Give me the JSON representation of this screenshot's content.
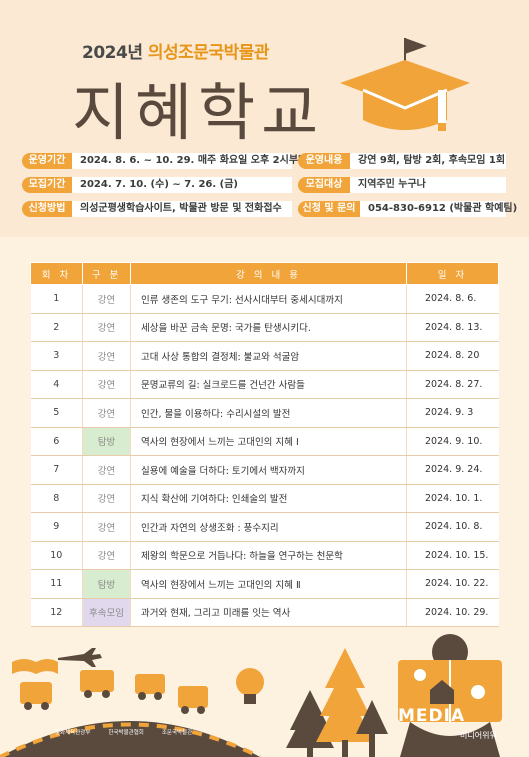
{
  "header": {
    "year": "2024년",
    "museum": "의성조문국박물관",
    "title": "지혜학교"
  },
  "info": {
    "period_label": "운영기간",
    "period_value": "2024. 8. 6. ~ 10. 29. 매주 화요일 오후 2시부터",
    "recruit_label": "모집기간",
    "recruit_value": "2024. 7. 10. (수) ~ 7. 26. (금)",
    "apply_label": "신청방법",
    "apply_value": "의성군평생학습사이트, 박물관 방문 및 전화접수",
    "content_label": "운영내용",
    "content_value": "강연 9회, 탐방 2회, 후속모임 1회",
    "target_label": "모집대상",
    "target_value": "지역주민 누구나",
    "contact_label": "신청 및 문의",
    "contact_value": "054-830-6912 (박물관 학예팀)"
  },
  "table": {
    "headers": [
      "회 차",
      "구 분",
      "강 의 내 용",
      "일 자"
    ],
    "rows": [
      {
        "no": "1",
        "kind": "강연",
        "title": "인류 생존의 도구 무기: 선사시대부터 중세시대까지",
        "date": "2024. 8. 6."
      },
      {
        "no": "2",
        "kind": "강연",
        "title": "세상을 바꾼 금속 문명: 국가를 탄생시키다.",
        "date": "2024. 8. 13."
      },
      {
        "no": "3",
        "kind": "강연",
        "title": "고대 사상 통합의 결정체: 불교와 석굴암",
        "date": "2024. 8. 20"
      },
      {
        "no": "4",
        "kind": "강연",
        "title": "문명교류의 길: 실크로드를 건넌간 사람들",
        "date": "2024. 8. 27."
      },
      {
        "no": "5",
        "kind": "강연",
        "title": "인간, 물을 이용하다: 수리시설의 발전",
        "date": "2024. 9. 3"
      },
      {
        "no": "6",
        "kind": "탐방",
        "title": "역사의 현장에서 느끼는 고대인의 지혜 Ⅰ",
        "date": "2024. 9. 10."
      },
      {
        "no": "7",
        "kind": "강연",
        "title": "실용에 예술을 더하다: 토기에서 백자까지",
        "date": "2024. 9. 24."
      },
      {
        "no": "8",
        "kind": "강연",
        "title": "지식 확산에 기여하다: 인쇄술의 발전",
        "date": "2024. 10. 1."
      },
      {
        "no": "9",
        "kind": "강연",
        "title": "인간과 자연의 상생조화 : 풍수지리",
        "date": "2024. 10. 8."
      },
      {
        "no": "10",
        "kind": "강연",
        "title": "제왕의 학문으로 거듭나다: 하늘을 연구하는 천문학",
        "date": "2024. 10. 15."
      },
      {
        "no": "11",
        "kind": "탐방",
        "title": "역사의 현장에서 느끼는 고대인의 지혜 Ⅱ",
        "date": "2024. 10. 22."
      },
      {
        "no": "12",
        "kind": "후속모임",
        "title": "과거와 현재, 그리고 미래를 잇는 역사",
        "date": "2024. 10. 29."
      }
    ]
  },
  "footer": {
    "logo1": "문화체육관광부",
    "logo2": "한국박물관협회",
    "logo3": "조문국박물관",
    "watermark": "MEDIA",
    "watermark_sub": "미디어위워"
  },
  "colors": {
    "accent": "#f0a43a",
    "title": "#5a4a3e",
    "visit": "#d8ecd0",
    "after": "#e1d8ee"
  }
}
